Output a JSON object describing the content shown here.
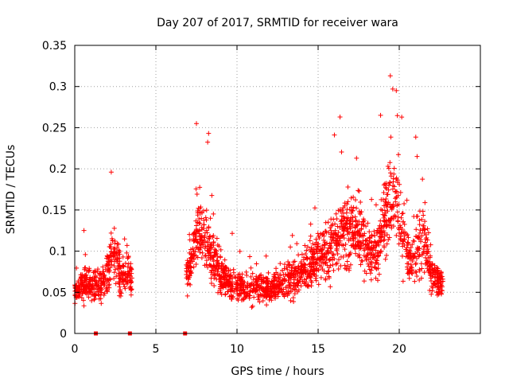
{
  "chart_data": {
    "type": "scatter",
    "title": "Day 207 of 2017, SRMTID for receiver wara",
    "xlabel": "GPS time / hours",
    "ylabel": "SRMTID / TECUs",
    "xlim": [
      0,
      25
    ],
    "ylim": [
      0,
      0.35
    ],
    "xticks": [
      0,
      5,
      10,
      15,
      20
    ],
    "xtick_labels": [
      "0",
      "5",
      "10",
      "15",
      "20"
    ],
    "yticks": [
      0,
      0.05,
      0.1,
      0.15,
      0.2,
      0.25,
      0.3,
      0.35
    ],
    "ytick_labels": [
      "0",
      "0.05",
      "0.1",
      "0.15",
      "0.2",
      "0.25",
      "0.3",
      "0.35"
    ],
    "grid": true,
    "marker": "+",
    "series_color": "#ff0000",
    "outlier_points": [
      {
        "x": 2.25,
        "y": 0.196
      },
      {
        "x": 7.5,
        "y": 0.255
      },
      {
        "x": 8.25,
        "y": 0.243
      },
      {
        "x": 16.35,
        "y": 0.263
      },
      {
        "x": 18.85,
        "y": 0.265
      },
      {
        "x": 19.45,
        "y": 0.313
      },
      {
        "x": 19.6,
        "y": 0.297
      },
      {
        "x": 21.1,
        "y": 0.215
      }
    ],
    "zero_points": [
      {
        "x": 1.3,
        "y": 0
      },
      {
        "x": 3.4,
        "y": 0
      },
      {
        "x": 6.8,
        "y": 0
      }
    ],
    "trend": {
      "description": "approximate center of dense point cloud",
      "x": [
        0,
        0.5,
        1.0,
        1.5,
        2.0,
        2.3,
        2.6,
        2.8,
        3.3,
        3.5,
        6.9,
        7.3,
        7.6,
        8.0,
        8.5,
        9.0,
        10.0,
        11.0,
        12.0,
        13.0,
        14.0,
        15.0,
        15.7,
        16.3,
        16.8,
        17.5,
        18.0,
        18.5,
        19.0,
        19.4,
        19.8,
        20.2,
        20.6,
        21.0,
        21.5,
        22.0,
        22.7
      ],
      "y": [
        0.05,
        0.06,
        0.06,
        0.055,
        0.07,
        0.1,
        0.09,
        0.07,
        0.08,
        0.06,
        0.07,
        0.1,
        0.13,
        0.11,
        0.09,
        0.07,
        0.055,
        0.055,
        0.055,
        0.06,
        0.075,
        0.09,
        0.1,
        0.12,
        0.13,
        0.12,
        0.1,
        0.09,
        0.13,
        0.17,
        0.17,
        0.12,
        0.09,
        0.1,
        0.12,
        0.07,
        0.06
      ]
    },
    "point_count": 2600
  }
}
